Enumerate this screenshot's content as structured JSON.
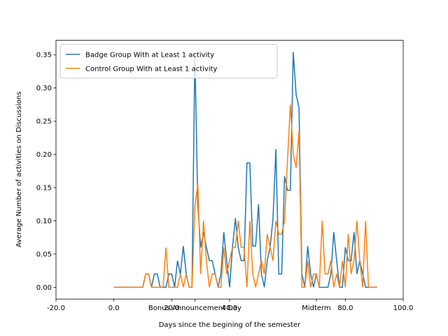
{
  "chart_data": {
    "type": "line",
    "xlabel": "Days since the begining of the semester",
    "ylabel": "Average Number of activities on Discussions",
    "x": [
      0,
      1,
      2,
      3,
      4,
      5,
      6,
      7,
      8,
      9,
      10,
      11,
      12,
      13,
      14,
      15,
      16,
      17,
      18,
      19,
      20,
      21,
      22,
      23,
      24,
      25,
      26,
      27,
      28,
      29,
      30,
      31,
      32,
      33,
      34,
      35,
      36,
      37,
      38,
      39,
      40,
      41,
      42,
      43,
      44,
      45,
      46,
      47,
      48,
      49,
      50,
      51,
      52,
      53,
      54,
      55,
      56,
      57,
      58,
      59,
      60,
      61,
      62,
      63,
      64,
      65,
      66,
      67,
      68,
      69,
      70,
      71,
      72,
      73,
      74,
      75,
      76,
      77,
      78,
      79,
      80,
      81,
      82,
      83,
      84,
      85,
      86,
      87,
      88,
      89,
      90,
      91
    ],
    "series": [
      {
        "name": "Badge Group With at Least 1 activity",
        "color": "#1f77b4",
        "values": [
          0,
          0,
          0,
          0,
          0,
          0,
          0,
          0,
          0,
          0,
          0,
          0.02,
          0.02,
          0,
          0.02,
          0.02,
          0,
          0,
          0,
          0.02,
          0.02,
          0,
          0.04,
          0.02,
          0.062,
          0.02,
          0,
          0,
          0.354,
          0.125,
          0.06,
          0.083,
          0.06,
          0.04,
          0.04,
          0.02,
          0,
          0.02,
          0.083,
          0.04,
          0,
          0.06,
          0.104,
          0.06,
          0.04,
          0.04,
          0.187,
          0.187,
          0.062,
          0.062,
          0.125,
          0.02,
          0,
          0.04,
          0.06,
          0.104,
          0.208,
          0.02,
          0.02,
          0.167,
          0.146,
          0.146,
          0.354,
          0.29,
          0.27,
          0.02,
          0,
          0.062,
          0.02,
          0,
          0.02,
          0,
          0,
          0,
          0,
          0.02,
          0.083,
          0.04,
          0,
          0,
          0.06,
          0.04,
          0.04,
          0.083,
          0.02,
          0.04,
          0.02,
          0,
          0,
          0,
          0,
          0
        ]
      },
      {
        "name": "Control Group With at Least 1 activity",
        "color": "#ff7f0e",
        "values": [
          0,
          0,
          0,
          0,
          0,
          0,
          0,
          0,
          0,
          0,
          0,
          0.02,
          0.02,
          0,
          0,
          0,
          0,
          0,
          0.06,
          0,
          0,
          0,
          0,
          0.02,
          0,
          0.02,
          0,
          0,
          0.12,
          0.156,
          0.02,
          0.1,
          0.04,
          0,
          0.02,
          0.02,
          0,
          0,
          0.06,
          0.02,
          0.04,
          0.06,
          0.06,
          0.1,
          0.06,
          0.06,
          0,
          0.1,
          0.02,
          0,
          0.02,
          0.04,
          0.02,
          0.08,
          0.06,
          0.04,
          0.1,
          0.08,
          0.08,
          0.1,
          0.19,
          0.275,
          0.2,
          0.18,
          0.235,
          0,
          0,
          0.04,
          0,
          0.02,
          0.02,
          0,
          0.1,
          0.02,
          0.02,
          0.04,
          0,
          0.02,
          0,
          0.04,
          0,
          0.08,
          0.02,
          0.04,
          0.1,
          0.04,
          0,
          0.1,
          0,
          0,
          0,
          0
        ]
      }
    ],
    "xlim": [
      -20,
      100
    ],
    "xticks": [
      {
        "value": -20,
        "label": "-20.0"
      },
      {
        "value": 0,
        "label": "0.0"
      },
      {
        "value": 20,
        "label": "20.0"
      },
      {
        "value": 28,
        "label": "Bonus Announcement Day"
      },
      {
        "value": 40,
        "label": "40.0"
      },
      {
        "value": 70,
        "label": "Midterm"
      },
      {
        "value": 80,
        "label": "80.0"
      },
      {
        "value": 100,
        "label": "100.0"
      }
    ],
    "ylim": [
      -0.0177,
      0.3717
    ],
    "yticks": [
      {
        "value": 0,
        "label": "0.00"
      },
      {
        "value": 0.05,
        "label": "0.05"
      },
      {
        "value": 0.1,
        "label": "0.10"
      },
      {
        "value": 0.15,
        "label": "0.15"
      },
      {
        "value": 0.2,
        "label": "0.20"
      },
      {
        "value": 0.25,
        "label": "0.25"
      },
      {
        "value": 0.3,
        "label": "0.30"
      },
      {
        "value": 0.35,
        "label": "0.35"
      }
    ],
    "legend": "upper left",
    "grid": false
  }
}
